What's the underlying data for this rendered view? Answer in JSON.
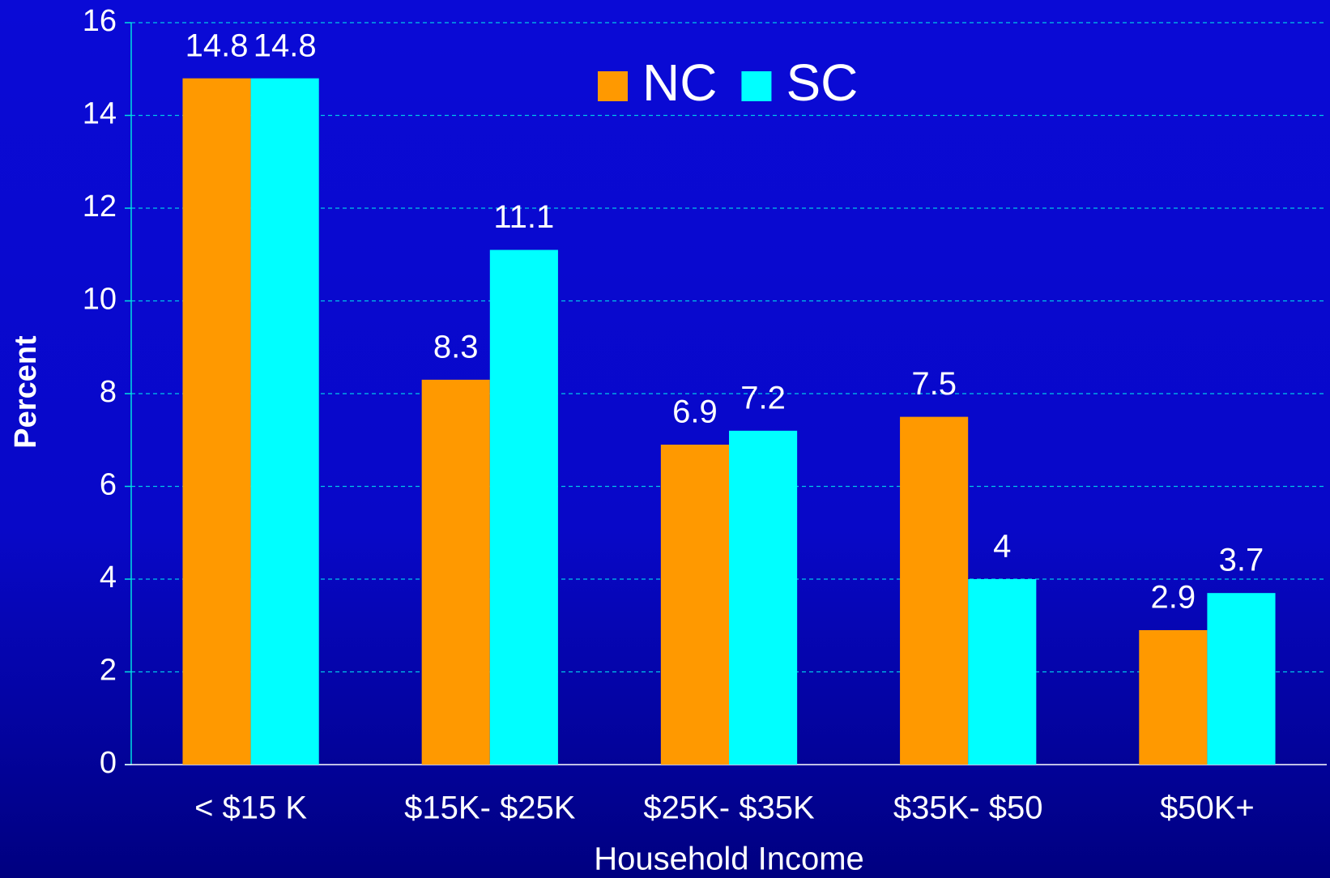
{
  "chart_data": {
    "type": "bar",
    "x_label": "Household Income",
    "y_label": "Percent",
    "categories": [
      "< $15 K",
      "$15K- $25K",
      "$25K- $35K",
      "$35K- $50",
      "$50K+"
    ],
    "series": [
      {
        "name": "NC",
        "color": "#ff9900",
        "values": [
          14.8,
          8.3,
          6.9,
          7.5,
          2.9
        ]
      },
      {
        "name": "SC",
        "color": "#00ffff",
        "values": [
          14.8,
          11.1,
          7.2,
          4,
          3.7
        ]
      }
    ],
    "ylim": [
      0,
      16
    ],
    "yticks": [
      0,
      2,
      4,
      6,
      8,
      10,
      12,
      14,
      16
    ],
    "grid": true,
    "legend": "top"
  }
}
